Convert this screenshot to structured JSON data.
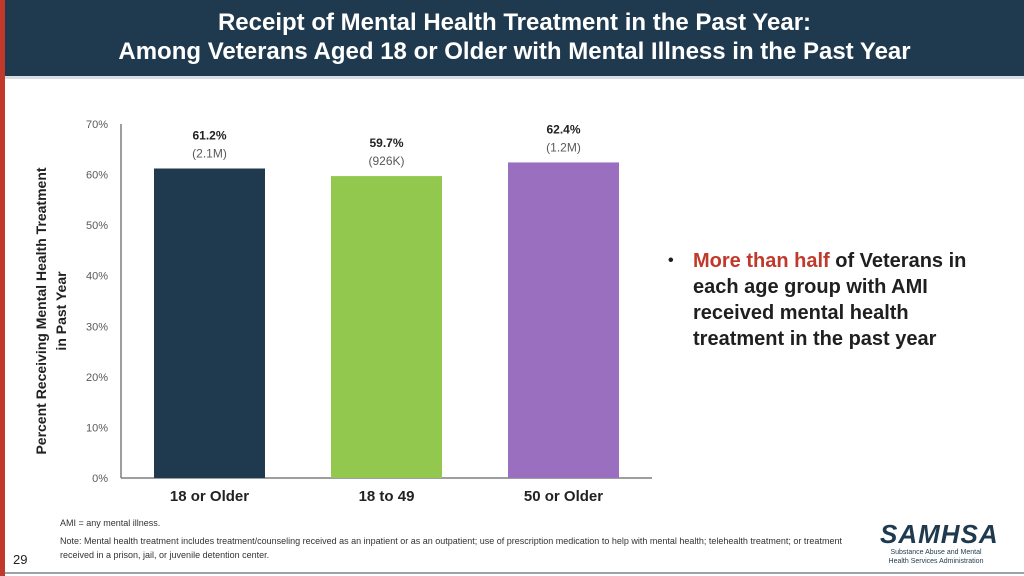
{
  "header": {
    "title_line1": "Receipt of Mental Health Treatment in the Past Year:",
    "title_line2": "Among Veterans Aged 18 or Older with Mental Illness in the Past Year"
  },
  "colors": {
    "header_bg": "#1f3a4e",
    "accent_red": "#c0392b",
    "bar_18_or_older": "#1f3a4e",
    "bar_18_to_49": "#92c84e",
    "bar_50_or_older": "#9b6fc0"
  },
  "chart_data": {
    "type": "bar",
    "title": "",
    "xlabel": "",
    "ylabel": "Percent Receiving Mental Health Treatment in Past Year",
    "ylabel_line1": "Percent Receiving Mental Health Treatment",
    "ylabel_line2": "in Past Year",
    "ylim": [
      0,
      70
    ],
    "yticks": [
      0,
      10,
      20,
      30,
      40,
      50,
      60,
      70
    ],
    "ytick_labels": [
      "0%",
      "10%",
      "20%",
      "30%",
      "40%",
      "50%",
      "60%",
      "70%"
    ],
    "grid": false,
    "categories": [
      "18 or Older",
      "18 to 49",
      "50 or Older"
    ],
    "values": [
      61.2,
      59.7,
      62.4
    ],
    "value_labels": [
      "61.2%",
      "59.7%",
      "62.4%"
    ],
    "count_labels": [
      "(2.1M)",
      "(926K)",
      "(1.2M)"
    ]
  },
  "bullet": {
    "highlight": "More than half",
    "rest": " of Veterans in each age group with AMI received mental health treatment in the past year"
  },
  "footnotes": {
    "ami": "AMI = any mental illness.",
    "note": "Note: Mental health treatment includes treatment/counseling received as an inpatient or as an outpatient; use of prescription medication to help with mental health; telehealth treatment; or treatment received in a prison, jail, or juvenile detention center."
  },
  "page_number": "29",
  "logo": {
    "name": "SAMHSA",
    "subtitle": "Substance Abuse and Mental Health Services Administration"
  }
}
